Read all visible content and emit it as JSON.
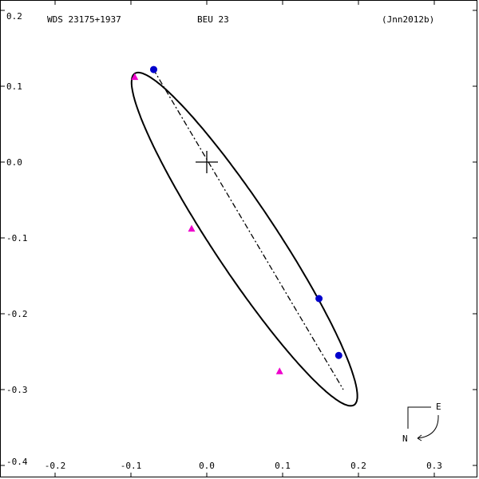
{
  "chart_data": {
    "type": "scatter",
    "title": "",
    "header": {
      "left": "WDS 23175+1937",
      "center": "BEU  23",
      "right": "(Jnn2012b)"
    },
    "xlabel": "",
    "ylabel": "",
    "xlim": [
      -0.2,
      0.35
    ],
    "ylim": [
      -0.41,
      0.2
    ],
    "x_ticks": [
      {
        "value": -0.2,
        "label": "-0.2"
      },
      {
        "value": -0.1,
        "label": "-0.1"
      },
      {
        "value": 0.0,
        "label": "0.0"
      },
      {
        "value": 0.1,
        "label": "0.1"
      },
      {
        "value": 0.2,
        "label": "0.2"
      },
      {
        "value": 0.3,
        "label": "0.3"
      }
    ],
    "y_ticks": [
      {
        "value": 0.2,
        "label": "0.2"
      },
      {
        "value": 0.1,
        "label": "0.1"
      },
      {
        "value": 0.0,
        "label": "0.0"
      },
      {
        "value": -0.1,
        "label": "-0.1"
      },
      {
        "value": -0.2,
        "label": "-0.2"
      },
      {
        "value": -0.3,
        "label": "-0.3"
      },
      {
        "value": -0.4,
        "label": "-0.4"
      }
    ],
    "orbit": {
      "center": [
        0.0497,
        -0.1017
      ],
      "semi_major": 0.262,
      "semi_minor": 0.0423,
      "angle_deg": -56.5,
      "color": "#000000"
    },
    "line_of_nodes": {
      "from": [
        -0.0705,
        0.1225
      ],
      "to": [
        0.18,
        -0.3
      ],
      "color": "#000000"
    },
    "primary": [
      0.0,
      0.0
    ],
    "series": [
      {
        "marker": "circle",
        "color": "#0000cc",
        "points": [
          [
            -0.07,
            0.122
          ],
          [
            0.148,
            -0.18
          ],
          [
            0.174,
            -0.255
          ]
        ]
      },
      {
        "marker": "triangle",
        "color": "#ee00cc",
        "points": [
          [
            -0.095,
            0.112
          ],
          [
            -0.02,
            -0.088
          ],
          [
            0.096,
            -0.276
          ]
        ]
      }
    ],
    "compass": {
      "east": "E",
      "north": "N"
    },
    "grid": false
  }
}
